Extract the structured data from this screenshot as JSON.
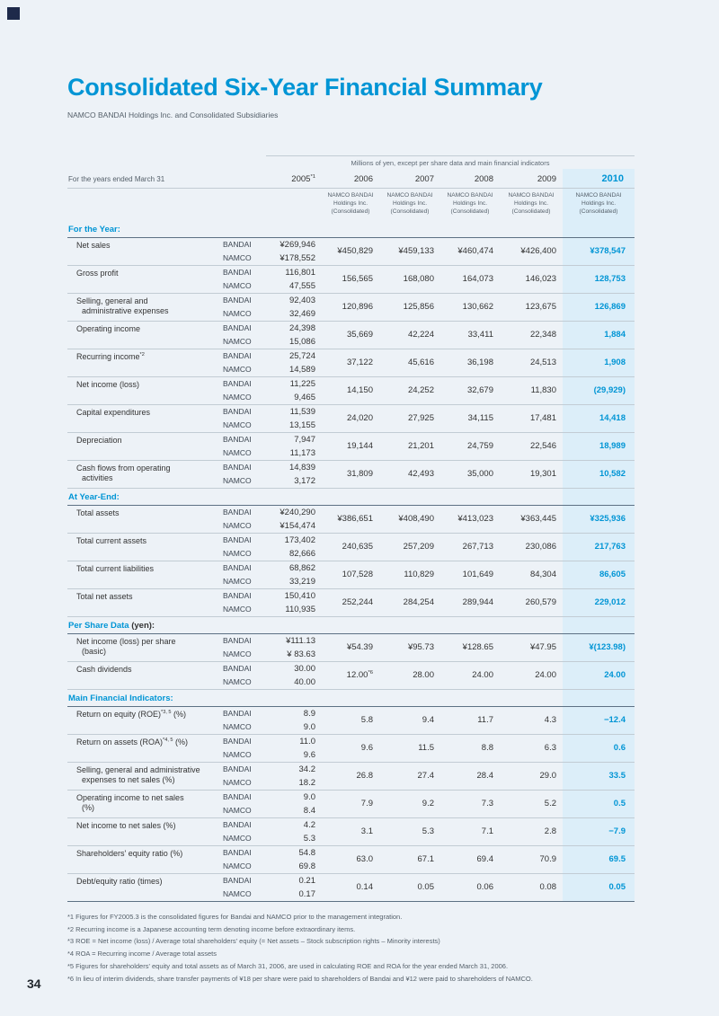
{
  "page": {
    "title": "Consolidated Six-Year Financial Summary",
    "subtitle": "NAMCO BANDAI Holdings Inc. and Consolidated Subsidiaries",
    "page_number": "34",
    "colors": {
      "accent": "#0095d5",
      "highlight_column": "#dceef9",
      "background": "#edf2f7",
      "corner_square": "#1e2a4a",
      "rule_thin": "#c2ccd4",
      "rule_dark": "#5d7184"
    }
  },
  "table": {
    "units_note": "Millions of yen, except per share data and main financial indicators",
    "years_label": "For the years ended March 31",
    "company_labels": [
      "BANDAI",
      "NAMCO"
    ],
    "consolidated_lines": [
      "NAMCO BANDAI",
      "Holdings Inc.",
      "(Consolidated)"
    ],
    "years": [
      {
        "text": "2005",
        "sup": "*1"
      },
      {
        "text": "2006"
      },
      {
        "text": "2007"
      },
      {
        "text": "2008"
      },
      {
        "text": "2009"
      },
      {
        "text": "2010",
        "current": true
      }
    ],
    "sections": [
      {
        "heading": "For the Year:",
        "rows": [
          {
            "label": "Net sales",
            "values_2005": [
              "¥269,946",
              "¥178,552"
            ],
            "values": [
              "¥450,829",
              "¥459,133",
              "¥460,474",
              "¥426,400",
              "¥378,547"
            ]
          },
          {
            "label": "Gross profit",
            "values_2005": [
              "116,801",
              "47,555"
            ],
            "values": [
              "156,565",
              "168,080",
              "164,073",
              "146,023",
              "128,753"
            ]
          },
          {
            "label": "Selling, general and",
            "label2": "administrative expenses",
            "values_2005": [
              "92,403",
              "32,469"
            ],
            "values": [
              "120,896",
              "125,856",
              "130,662",
              "123,675",
              "126,869"
            ]
          },
          {
            "label": "Operating income",
            "values_2005": [
              "24,398",
              "15,086"
            ],
            "values": [
              "35,669",
              "42,224",
              "33,411",
              "22,348",
              "1,884"
            ]
          },
          {
            "label": "Recurring income",
            "sup": "*2",
            "values_2005": [
              "25,724",
              "14,589"
            ],
            "values": [
              "37,122",
              "45,616",
              "36,198",
              "24,513",
              "1,908"
            ]
          },
          {
            "label": "Net income (loss)",
            "values_2005": [
              "11,225",
              "9,465"
            ],
            "values": [
              "14,150",
              "24,252",
              "32,679",
              "11,830",
              "(29,929)"
            ]
          },
          {
            "label": "Capital expenditures",
            "values_2005": [
              "11,539",
              "13,155"
            ],
            "values": [
              "24,020",
              "27,925",
              "34,115",
              "17,481",
              "14,418"
            ]
          },
          {
            "label": "Depreciation",
            "values_2005": [
              "7,947",
              "11,173"
            ],
            "values": [
              "19,144",
              "21,201",
              "24,759",
              "22,546",
              "18,989"
            ]
          },
          {
            "label": "Cash flows from operating",
            "label2": "activities",
            "values_2005": [
              "14,839",
              "3,172"
            ],
            "values": [
              "31,809",
              "42,493",
              "35,000",
              "19,301",
              "10,582"
            ]
          }
        ]
      },
      {
        "heading": "At Year-End:",
        "rows": [
          {
            "label": "Total assets",
            "values_2005": [
              "¥240,290",
              "¥154,474"
            ],
            "values": [
              "¥386,651",
              "¥408,490",
              "¥413,023",
              "¥363,445",
              "¥325,936"
            ]
          },
          {
            "label": "Total current assets",
            "values_2005": [
              "173,402",
              "82,666"
            ],
            "values": [
              "240,635",
              "257,209",
              "267,713",
              "230,086",
              "217,763"
            ]
          },
          {
            "label": "Total current liabilities",
            "values_2005": [
              "68,862",
              "33,219"
            ],
            "values": [
              "107,528",
              "110,829",
              "101,649",
              "84,304",
              "86,605"
            ]
          },
          {
            "label": "Total net assets",
            "values_2005": [
              "150,410",
              "110,935"
            ],
            "values": [
              "252,244",
              "284,254",
              "289,944",
              "260,579",
              "229,012"
            ]
          }
        ]
      },
      {
        "heading": "Per Share Data",
        "heading_suffix": "(yen):",
        "rows": [
          {
            "label": "Net income (loss) per share",
            "label2": "(basic)",
            "values_2005": [
              "¥111.13",
              "¥ 83.63"
            ],
            "values": [
              "¥54.39",
              "¥95.73",
              "¥128.65",
              "¥47.95",
              "¥(123.98)"
            ]
          },
          {
            "label": "Cash dividends",
            "values_2005": [
              "30.00",
              "40.00"
            ],
            "values": [
              "12.00*6",
              "28.00",
              "24.00",
              "24.00",
              "24.00"
            ]
          }
        ]
      },
      {
        "heading": "Main Financial Indicators:",
        "rows": [
          {
            "label": "Return on equity (ROE)",
            "sup": "*3, 5",
            "after": " (%)",
            "values_2005": [
              "8.9",
              "9.0"
            ],
            "values": [
              "5.8",
              "9.4",
              "11.7",
              "4.3",
              "−12.4"
            ]
          },
          {
            "label": "Return on assets (ROA)",
            "sup": "*4, 5",
            "after": " (%)",
            "values_2005": [
              "11.0",
              "9.6"
            ],
            "values": [
              "9.6",
              "11.5",
              "8.8",
              "6.3",
              "0.6"
            ]
          },
          {
            "label": "Selling, general and administrative",
            "label2": "expenses to net sales (%)",
            "values_2005": [
              "34.2",
              "18.2"
            ],
            "values": [
              "26.8",
              "27.4",
              "28.4",
              "29.0",
              "33.5"
            ]
          },
          {
            "label": "Operating income to net sales",
            "label2": "(%)",
            "values_2005": [
              "9.0",
              "8.4"
            ],
            "values": [
              "7.9",
              "9.2",
              "7.3",
              "5.2",
              "0.5"
            ]
          },
          {
            "label": "Net income to net sales (%)",
            "values_2005": [
              "4.2",
              "5.3"
            ],
            "values": [
              "3.1",
              "5.3",
              "7.1",
              "2.8",
              "−7.9"
            ]
          },
          {
            "label": "Shareholders' equity ratio (%)",
            "values_2005": [
              "54.8",
              "69.8"
            ],
            "values": [
              "63.0",
              "67.1",
              "69.4",
              "70.9",
              "69.5"
            ]
          },
          {
            "label": "Debt/equity ratio (times)",
            "values_2005": [
              "0.21",
              "0.17"
            ],
            "values": [
              "0.14",
              "0.05",
              "0.06",
              "0.08",
              "0.05"
            ]
          }
        ]
      }
    ]
  },
  "footnotes": [
    "*1 Figures for FY2005.3 is the consolidated figures for Bandai and NAMCO prior to the management integration.",
    "*2 Recurring income is a Japanese accounting term denoting income before extraordinary items.",
    "*3 ROE = Net income (loss) / Average total shareholders' equity (= Net assets – Stock subscription rights – Minority interests)",
    "*4 ROA = Recurring income / Average total assets",
    "*5 Figures for shareholders' equity and total assets as of March 31, 2006, are used in calculating ROE and ROA for the year ended March 31, 2006.",
    "*6 In lieu of interim dividends, share transfer payments of ¥18 per share were paid to shareholders of Bandai and ¥12 were paid to shareholders of NAMCO."
  ]
}
